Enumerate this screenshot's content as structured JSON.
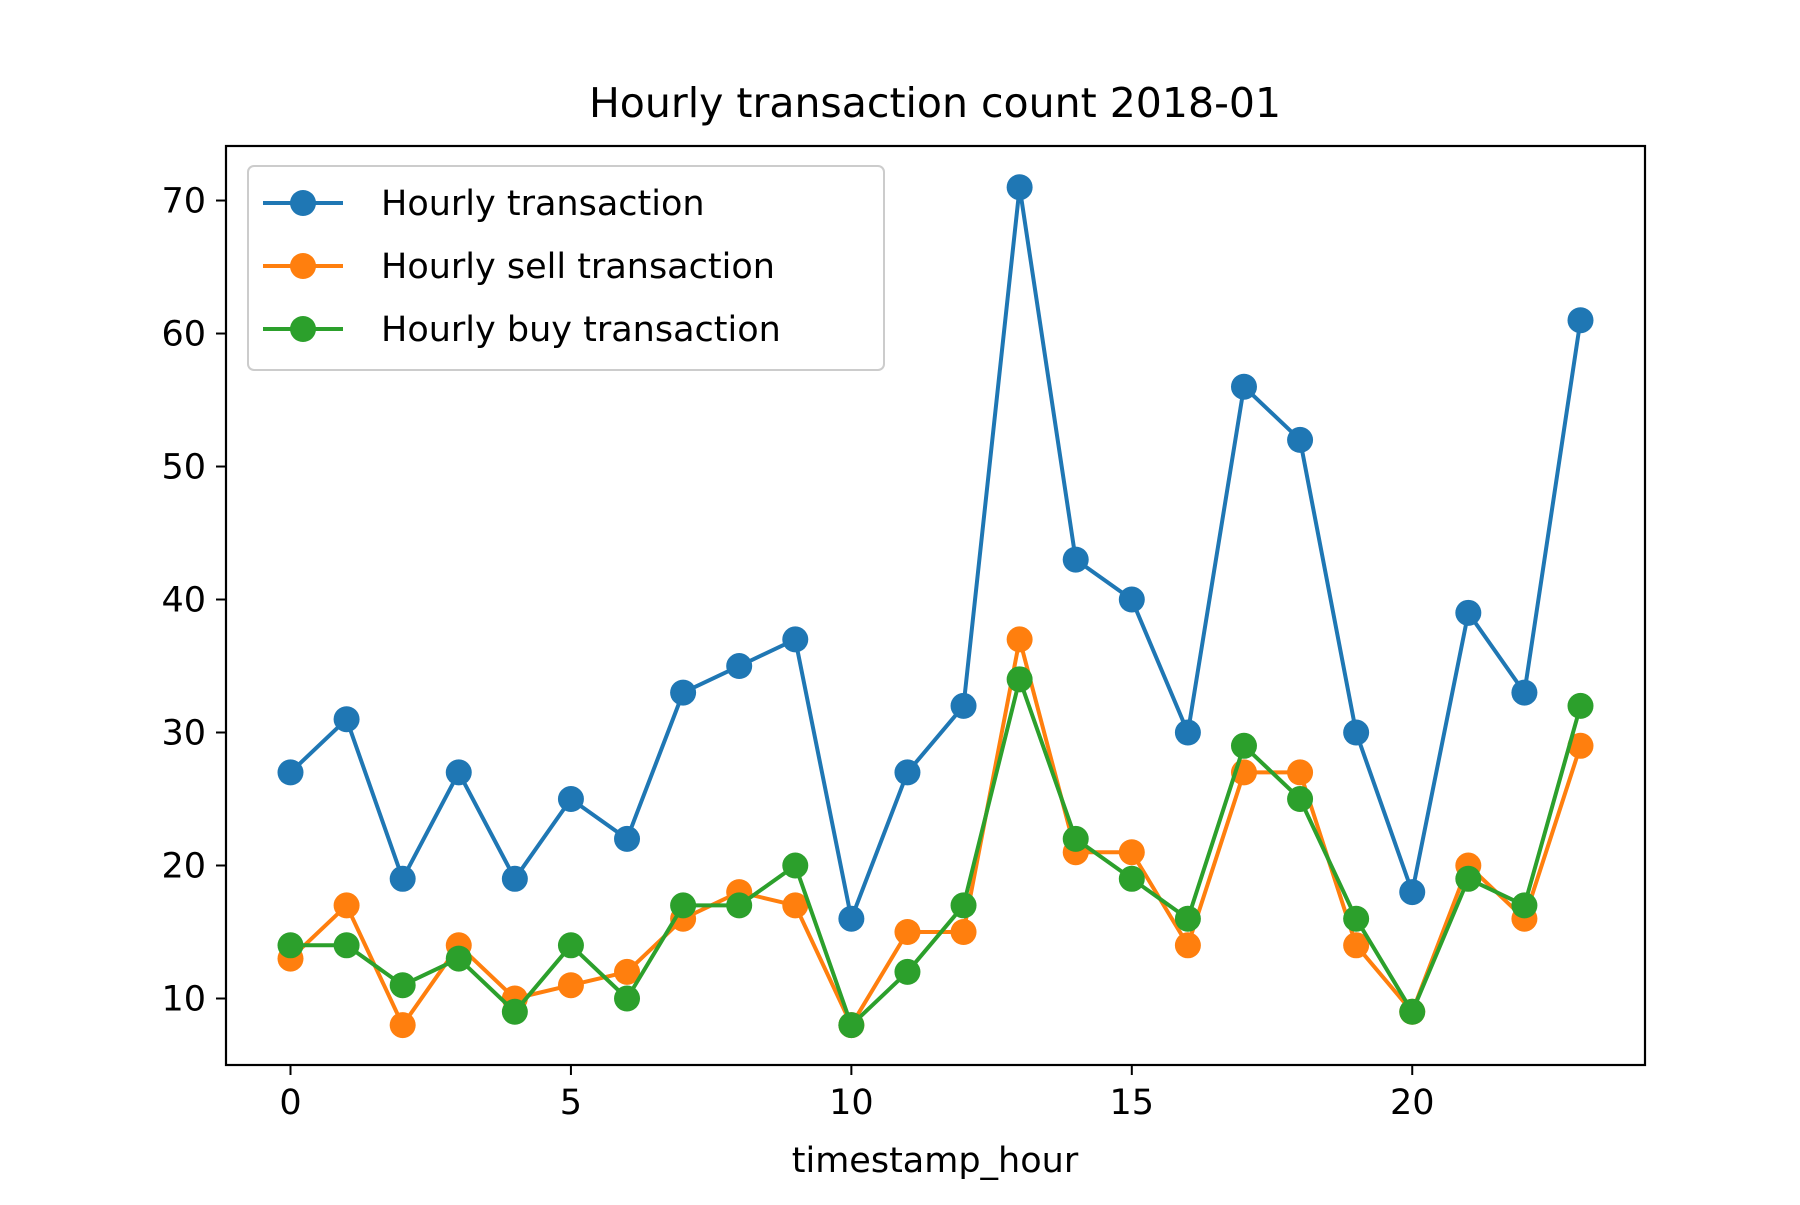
{
  "chart_data": {
    "type": "line",
    "title": "Hourly transaction count 2018-01",
    "xlabel": "timestamp_hour",
    "ylabel": "",
    "xlim": [
      -1.15,
      24.15
    ],
    "ylim": [
      5.0,
      74.1
    ],
    "xticks": [
      0,
      5,
      10,
      15,
      20
    ],
    "yticks": [
      10,
      20,
      30,
      40,
      50,
      60,
      70
    ],
    "grid": false,
    "legend_position": "top-left",
    "x": [
      0,
      1,
      2,
      3,
      4,
      5,
      6,
      7,
      8,
      9,
      10,
      11,
      12,
      13,
      14,
      15,
      16,
      17,
      18,
      19,
      20,
      21,
      22,
      23
    ],
    "series": [
      {
        "name": "Hourly transaction",
        "color": "#1f77b4",
        "values": [
          27,
          31,
          19,
          27,
          19,
          25,
          22,
          33,
          35,
          37,
          16,
          27,
          32,
          71,
          43,
          40,
          30,
          56,
          52,
          30,
          18,
          39,
          33,
          61
        ]
      },
      {
        "name": "Hourly sell transaction",
        "color": "#ff7f0e",
        "values": [
          13,
          17,
          8,
          14,
          10,
          11,
          12,
          16,
          18,
          17,
          8,
          15,
          15,
          37,
          21,
          21,
          14,
          27,
          27,
          14,
          9,
          20,
          16,
          29
        ]
      },
      {
        "name": "Hourly buy transaction",
        "color": "#2ca02c",
        "values": [
          14,
          14,
          11,
          13,
          9,
          14,
          10,
          17,
          17,
          20,
          8,
          12,
          17,
          34,
          22,
          19,
          16,
          29,
          25,
          16,
          9,
          19,
          17,
          32
        ]
      }
    ]
  }
}
